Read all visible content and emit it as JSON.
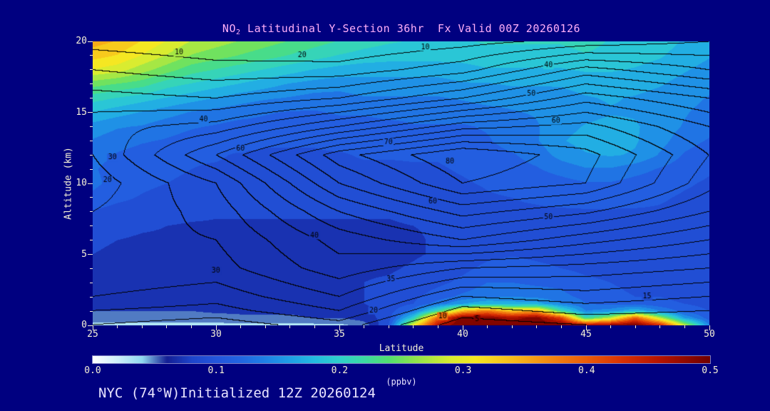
{
  "title": {
    "prefix": "NO",
    "sub": "2",
    "rest": " Latitudinal Y-Section 36hr  Fx Valid 00Z 20260126"
  },
  "footer": "NYC (74°W)Initialized 12Z 20260124",
  "axes": {
    "x_label": "Latitude",
    "y_label": "Altitude (km)",
    "x_ticks": [
      25,
      30,
      35,
      40,
      45,
      50
    ],
    "y_ticks": [
      0,
      5,
      10,
      15,
      20
    ]
  },
  "colorbar": {
    "label": "(ppbv)",
    "ticks": [
      "0.0",
      "0.1",
      "0.2",
      "0.3",
      "0.4",
      "0.5"
    ],
    "min": 0.0,
    "max": 0.5
  },
  "colors": {
    "background": "#000080",
    "title_text": "#ffaef8",
    "axis_text": "#f6f1d6",
    "footer_text": "#e9e4ff",
    "contour_line": "#000000"
  },
  "chart_data": {
    "type": "heatmap",
    "title": "NO2 Latitudinal Y-Section 36hr Fx Valid 00Z 20260126",
    "xlabel": "Latitude",
    "ylabel": "Altitude (km)",
    "units": "ppbv",
    "x_range": [
      25,
      50
    ],
    "y_range": [
      0,
      20
    ],
    "fill_range": [
      0.0,
      0.5
    ],
    "quantize_step": 0.02,
    "colormap_stops": [
      {
        "v": 0.0,
        "c": "#ffffff"
      },
      {
        "v": 0.02,
        "c": "#cfeffa"
      },
      {
        "v": 0.04,
        "c": "#8fd8f0"
      },
      {
        "v": 0.06,
        "c": "#141f96"
      },
      {
        "v": 0.08,
        "c": "#1e46cc"
      },
      {
        "v": 0.1,
        "c": "#2456dd"
      },
      {
        "v": 0.12,
        "c": "#2266e2"
      },
      {
        "v": 0.14,
        "c": "#1f82e6"
      },
      {
        "v": 0.16,
        "c": "#1fa0e6"
      },
      {
        "v": 0.18,
        "c": "#24bce0"
      },
      {
        "v": 0.2,
        "c": "#2fd0cc"
      },
      {
        "v": 0.22,
        "c": "#3cd9a4"
      },
      {
        "v": 0.24,
        "c": "#53df70"
      },
      {
        "v": 0.26,
        "c": "#8ce44e"
      },
      {
        "v": 0.29,
        "c": "#d9ec30"
      },
      {
        "v": 0.31,
        "c": "#f5e722"
      },
      {
        "v": 0.34,
        "c": "#f8bc1b"
      },
      {
        "v": 0.37,
        "c": "#f48812"
      },
      {
        "v": 0.4,
        "c": "#ea5c0a"
      },
      {
        "v": 0.43,
        "c": "#d93004"
      },
      {
        "v": 0.46,
        "c": "#b51300"
      },
      {
        "v": 0.5,
        "c": "#6f0000"
      }
    ],
    "fill": {
      "lats": [
        25,
        26,
        27,
        28,
        29,
        30,
        31,
        32,
        33,
        34,
        35,
        36,
        37,
        38,
        39,
        40,
        41,
        42,
        43,
        44,
        45,
        46,
        47,
        48,
        49,
        50
      ],
      "alts": [
        0,
        0.5,
        1,
        1.5,
        2,
        3,
        4,
        5,
        6,
        7,
        8,
        9,
        10,
        11,
        12,
        13,
        14,
        15,
        16,
        17,
        18,
        19,
        20
      ],
      "values_ppbv": [
        [
          0.035,
          0.035,
          0.035,
          0.035,
          0.035,
          0.035,
          0.035,
          0.035,
          0.035,
          0.035,
          0.035,
          0.05,
          0.1,
          0.3,
          0.46,
          0.5,
          0.5,
          0.5,
          0.5,
          0.5,
          0.46,
          0.48,
          0.5,
          0.44,
          0.28,
          0.14
        ],
        [
          0.05,
          0.05,
          0.05,
          0.05,
          0.05,
          0.05,
          0.055,
          0.055,
          0.055,
          0.06,
          0.06,
          0.07,
          0.09,
          0.2,
          0.4,
          0.5,
          0.49,
          0.47,
          0.49,
          0.42,
          0.22,
          0.28,
          0.4,
          0.28,
          0.16,
          0.11
        ],
        [
          0.06,
          0.06,
          0.06,
          0.06,
          0.06,
          0.065,
          0.065,
          0.065,
          0.065,
          0.07,
          0.07,
          0.075,
          0.09,
          0.13,
          0.22,
          0.34,
          0.38,
          0.33,
          0.35,
          0.22,
          0.14,
          0.15,
          0.18,
          0.14,
          0.11,
          0.1
        ],
        [
          0.065,
          0.065,
          0.065,
          0.065,
          0.065,
          0.07,
          0.07,
          0.07,
          0.07,
          0.07,
          0.075,
          0.08,
          0.085,
          0.1,
          0.13,
          0.16,
          0.18,
          0.17,
          0.17,
          0.14,
          0.12,
          0.115,
          0.115,
          0.105,
          0.1,
          0.095
        ],
        [
          0.068,
          0.068,
          0.065,
          0.065,
          0.068,
          0.07,
          0.07,
          0.072,
          0.072,
          0.075,
          0.078,
          0.08,
          0.085,
          0.095,
          0.11,
          0.125,
          0.135,
          0.14,
          0.135,
          0.125,
          0.115,
          0.105,
          0.1,
          0.1,
          0.095,
          0.09
        ],
        [
          0.072,
          0.07,
          0.068,
          0.068,
          0.068,
          0.07,
          0.072,
          0.072,
          0.075,
          0.078,
          0.078,
          0.08,
          0.082,
          0.088,
          0.095,
          0.105,
          0.12,
          0.12,
          0.115,
          0.115,
          0.105,
          0.1,
          0.095,
          0.092,
          0.09,
          0.088
        ],
        [
          0.078,
          0.072,
          0.068,
          0.068,
          0.068,
          0.068,
          0.072,
          0.072,
          0.075,
          0.078,
          0.078,
          0.078,
          0.078,
          0.082,
          0.088,
          0.095,
          0.105,
          0.11,
          0.105,
          0.1,
          0.095,
          0.092,
          0.088,
          0.088,
          0.088,
          0.085
        ],
        [
          0.08,
          0.078,
          0.072,
          0.068,
          0.068,
          0.068,
          0.072,
          0.075,
          0.078,
          0.078,
          0.078,
          0.075,
          0.075,
          0.078,
          0.082,
          0.088,
          0.095,
          0.098,
          0.095,
          0.092,
          0.09,
          0.088,
          0.088,
          0.088,
          0.088,
          0.085
        ],
        [
          0.082,
          0.08,
          0.078,
          0.078,
          0.075,
          0.075,
          0.078,
          0.078,
          0.078,
          0.075,
          0.072,
          0.072,
          0.075,
          0.078,
          0.082,
          0.088,
          0.092,
          0.092,
          0.092,
          0.09,
          0.088,
          0.088,
          0.088,
          0.088,
          0.088,
          0.085
        ],
        [
          0.088,
          0.085,
          0.082,
          0.08,
          0.078,
          0.078,
          0.078,
          0.078,
          0.078,
          0.078,
          0.078,
          0.078,
          0.078,
          0.08,
          0.082,
          0.088,
          0.09,
          0.092,
          0.092,
          0.092,
          0.09,
          0.088,
          0.09,
          0.092,
          0.09,
          0.088
        ],
        [
          0.098,
          0.092,
          0.09,
          0.088,
          0.085,
          0.082,
          0.082,
          0.082,
          0.082,
          0.082,
          0.082,
          0.082,
          0.082,
          0.085,
          0.088,
          0.09,
          0.092,
          0.098,
          0.098,
          0.098,
          0.098,
          0.098,
          0.098,
          0.098,
          0.096,
          0.092
        ],
        [
          0.115,
          0.105,
          0.098,
          0.092,
          0.09,
          0.088,
          0.088,
          0.088,
          0.088,
          0.088,
          0.088,
          0.088,
          0.088,
          0.088,
          0.09,
          0.092,
          0.098,
          0.1,
          0.102,
          0.105,
          0.108,
          0.108,
          0.106,
          0.102,
          0.098,
          0.096
        ],
        [
          0.125,
          0.112,
          0.105,
          0.1,
          0.098,
          0.092,
          0.092,
          0.092,
          0.092,
          0.092,
          0.092,
          0.092,
          0.092,
          0.092,
          0.095,
          0.098,
          0.102,
          0.106,
          0.108,
          0.112,
          0.118,
          0.118,
          0.112,
          0.108,
          0.102,
          0.098
        ],
        [
          0.122,
          0.112,
          0.108,
          0.102,
          0.1,
          0.098,
          0.096,
          0.096,
          0.096,
          0.096,
          0.096,
          0.096,
          0.096,
          0.098,
          0.098,
          0.102,
          0.106,
          0.112,
          0.118,
          0.128,
          0.138,
          0.138,
          0.128,
          0.118,
          0.108,
          0.102
        ],
        [
          0.128,
          0.118,
          0.112,
          0.108,
          0.102,
          0.102,
          0.098,
          0.098,
          0.098,
          0.098,
          0.098,
          0.102,
          0.102,
          0.102,
          0.102,
          0.106,
          0.112,
          0.118,
          0.128,
          0.148,
          0.158,
          0.162,
          0.158,
          0.138,
          0.118,
          0.108
        ],
        [
          0.138,
          0.128,
          0.122,
          0.118,
          0.112,
          0.108,
          0.106,
          0.102,
          0.102,
          0.102,
          0.106,
          0.106,
          0.106,
          0.106,
          0.106,
          0.112,
          0.118,
          0.128,
          0.138,
          0.158,
          0.168,
          0.168,
          0.162,
          0.148,
          0.128,
          0.118
        ],
        [
          0.152,
          0.142,
          0.138,
          0.128,
          0.122,
          0.118,
          0.112,
          0.112,
          0.108,
          0.108,
          0.112,
          0.112,
          0.112,
          0.118,
          0.118,
          0.118,
          0.122,
          0.128,
          0.138,
          0.152,
          0.162,
          0.168,
          0.162,
          0.152,
          0.138,
          0.128
        ],
        [
          0.178,
          0.168,
          0.158,
          0.148,
          0.138,
          0.132,
          0.128,
          0.122,
          0.118,
          0.118,
          0.122,
          0.122,
          0.128,
          0.128,
          0.128,
          0.128,
          0.132,
          0.138,
          0.142,
          0.148,
          0.152,
          0.158,
          0.158,
          0.148,
          0.142,
          0.132
        ],
        [
          0.208,
          0.198,
          0.188,
          0.178,
          0.168,
          0.158,
          0.148,
          0.142,
          0.138,
          0.132,
          0.132,
          0.138,
          0.138,
          0.138,
          0.138,
          0.142,
          0.148,
          0.148,
          0.148,
          0.152,
          0.158,
          0.162,
          0.158,
          0.152,
          0.148,
          0.138
        ],
        [
          0.248,
          0.238,
          0.228,
          0.208,
          0.198,
          0.188,
          0.178,
          0.168,
          0.158,
          0.152,
          0.148,
          0.152,
          0.152,
          0.152,
          0.152,
          0.158,
          0.158,
          0.162,
          0.162,
          0.162,
          0.168,
          0.168,
          0.168,
          0.162,
          0.152,
          0.148
        ],
        [
          0.298,
          0.288,
          0.268,
          0.248,
          0.228,
          0.218,
          0.208,
          0.198,
          0.188,
          0.178,
          0.172,
          0.168,
          0.168,
          0.168,
          0.168,
          0.172,
          0.178,
          0.178,
          0.178,
          0.178,
          0.182,
          0.182,
          0.178,
          0.172,
          0.162,
          0.152
        ],
        [
          0.328,
          0.318,
          0.298,
          0.278,
          0.258,
          0.248,
          0.238,
          0.228,
          0.218,
          0.208,
          0.198,
          0.192,
          0.188,
          0.188,
          0.188,
          0.188,
          0.192,
          0.192,
          0.192,
          0.192,
          0.198,
          0.192,
          0.188,
          0.182,
          0.172,
          0.162
        ],
        [
          0.348,
          0.338,
          0.318,
          0.298,
          0.278,
          0.268,
          0.258,
          0.248,
          0.238,
          0.228,
          0.218,
          0.208,
          0.202,
          0.198,
          0.198,
          0.198,
          0.202,
          0.202,
          0.202,
          0.202,
          0.208,
          0.198,
          0.192,
          0.188,
          0.178,
          0.168
        ]
      ]
    },
    "contours": {
      "interval": 5,
      "lats": [
        25,
        30,
        35,
        40,
        45,
        50
      ],
      "alts": [
        0,
        1,
        2,
        4,
        6,
        8,
        10,
        12,
        14,
        16,
        18,
        20
      ],
      "values": [
        [
          15,
          12,
          18,
          2,
          5,
          5
        ],
        [
          20,
          18,
          25,
          8,
          12,
          10
        ],
        [
          25,
          22,
          30,
          15,
          18,
          15
        ],
        [
          30,
          28,
          38,
          30,
          28,
          25
        ],
        [
          28,
          30,
          42,
          50,
          42,
          35
        ],
        [
          25,
          32,
          50,
          62,
          56,
          45
        ],
        [
          22,
          35,
          60,
          75,
          70,
          52
        ],
        [
          25,
          45,
          68,
          80,
          72,
          55
        ],
        [
          28,
          32,
          45,
          58,
          62,
          50
        ],
        [
          22,
          20,
          25,
          35,
          48,
          40
        ],
        [
          15,
          12,
          12,
          18,
          32,
          25
        ],
        [
          8,
          6,
          5,
          8,
          12,
          15
        ]
      ]
    },
    "contour_labels": [
      {
        "t": "10",
        "lat": 28.5,
        "alt": 19.2
      },
      {
        "t": "20",
        "lat": 33.5,
        "alt": 19.0
      },
      {
        "t": "10",
        "lat": 38.5,
        "alt": 19.6
      },
      {
        "t": "40",
        "lat": 43.5,
        "alt": 18.3
      },
      {
        "t": "50",
        "lat": 42.8,
        "alt": 16.3
      },
      {
        "t": "60",
        "lat": 43.8,
        "alt": 14.4
      },
      {
        "t": "40",
        "lat": 29.5,
        "alt": 14.5
      },
      {
        "t": "30",
        "lat": 25.8,
        "alt": 11.8
      },
      {
        "t": "20",
        "lat": 25.6,
        "alt": 10.2
      },
      {
        "t": "60",
        "lat": 31.0,
        "alt": 12.4
      },
      {
        "t": "70",
        "lat": 37.0,
        "alt": 12.9
      },
      {
        "t": "80",
        "lat": 39.5,
        "alt": 11.5
      },
      {
        "t": "60",
        "lat": 38.8,
        "alt": 8.7
      },
      {
        "t": "50",
        "lat": 43.5,
        "alt": 7.6
      },
      {
        "t": "40",
        "lat": 34.0,
        "alt": 6.3
      },
      {
        "t": "30",
        "lat": 30.0,
        "alt": 3.8
      },
      {
        "t": "35",
        "lat": 37.1,
        "alt": 3.2
      },
      {
        "t": "20",
        "lat": 36.4,
        "alt": 1.0
      },
      {
        "t": "15",
        "lat": 47.5,
        "alt": 2.0
      },
      {
        "t": "10",
        "lat": 39.2,
        "alt": 0.6
      },
      {
        "t": "5",
        "lat": 40.6,
        "alt": 0.4
      }
    ]
  }
}
